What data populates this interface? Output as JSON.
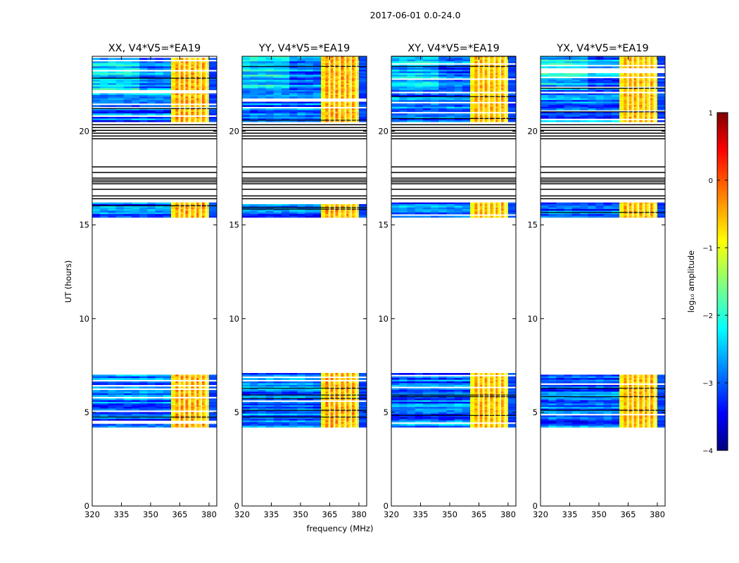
{
  "figure": {
    "suptitle": "2017-06-01 0.0-24.0"
  },
  "chart_data": {
    "type": "heatmap",
    "panels": [
      {
        "title": "XX, V4*V5=*EA19",
        "intensity": 1.0
      },
      {
        "title": "YY, V4*V5=*EA19",
        "intensity": 0.95
      },
      {
        "title": "XY, V4*V5=*EA19",
        "intensity": 0.75
      },
      {
        "title": "YX, V4*V5=*EA19",
        "intensity": 0.8
      }
    ],
    "xlabel": "frequency (MHz)",
    "ylabel": "UT (hours)",
    "xlim": [
      320,
      384
    ],
    "ylim": [
      0,
      24
    ],
    "xticks": [
      "320",
      "335",
      "350",
      "365",
      "380"
    ],
    "xtick_values": [
      320,
      335,
      350,
      365,
      380
    ],
    "yticks": [
      "0",
      "5",
      "10",
      "15",
      "20"
    ],
    "ytick_values": [
      0,
      5,
      10,
      15,
      20
    ],
    "data_blocks_ut": [
      [
        4.2,
        7.1
      ],
      [
        15.4,
        16.2
      ],
      [
        20.5,
        24.0
      ]
    ],
    "flagged_lines_ut": [
      16.4,
      16.55,
      16.9,
      17.2,
      17.3,
      17.4,
      17.5,
      17.8,
      18.1,
      19.6,
      19.75,
      19.9,
      20.05,
      20.2,
      20.35
    ],
    "rfi_band_mhz": [
      360.5,
      380
    ],
    "rfi_channels_mhz": [
      363.5,
      366,
      368.5,
      371.5,
      374,
      377
    ],
    "colorbar": {
      "label": "log₁₀ amplitude",
      "range": [
        -4,
        1
      ],
      "ticks": [
        "1",
        "0",
        "−1",
        "−2",
        "−3",
        "−4"
      ],
      "tick_values": [
        1,
        0,
        -1,
        -2,
        -3,
        -4
      ],
      "colormap": "jet"
    }
  }
}
